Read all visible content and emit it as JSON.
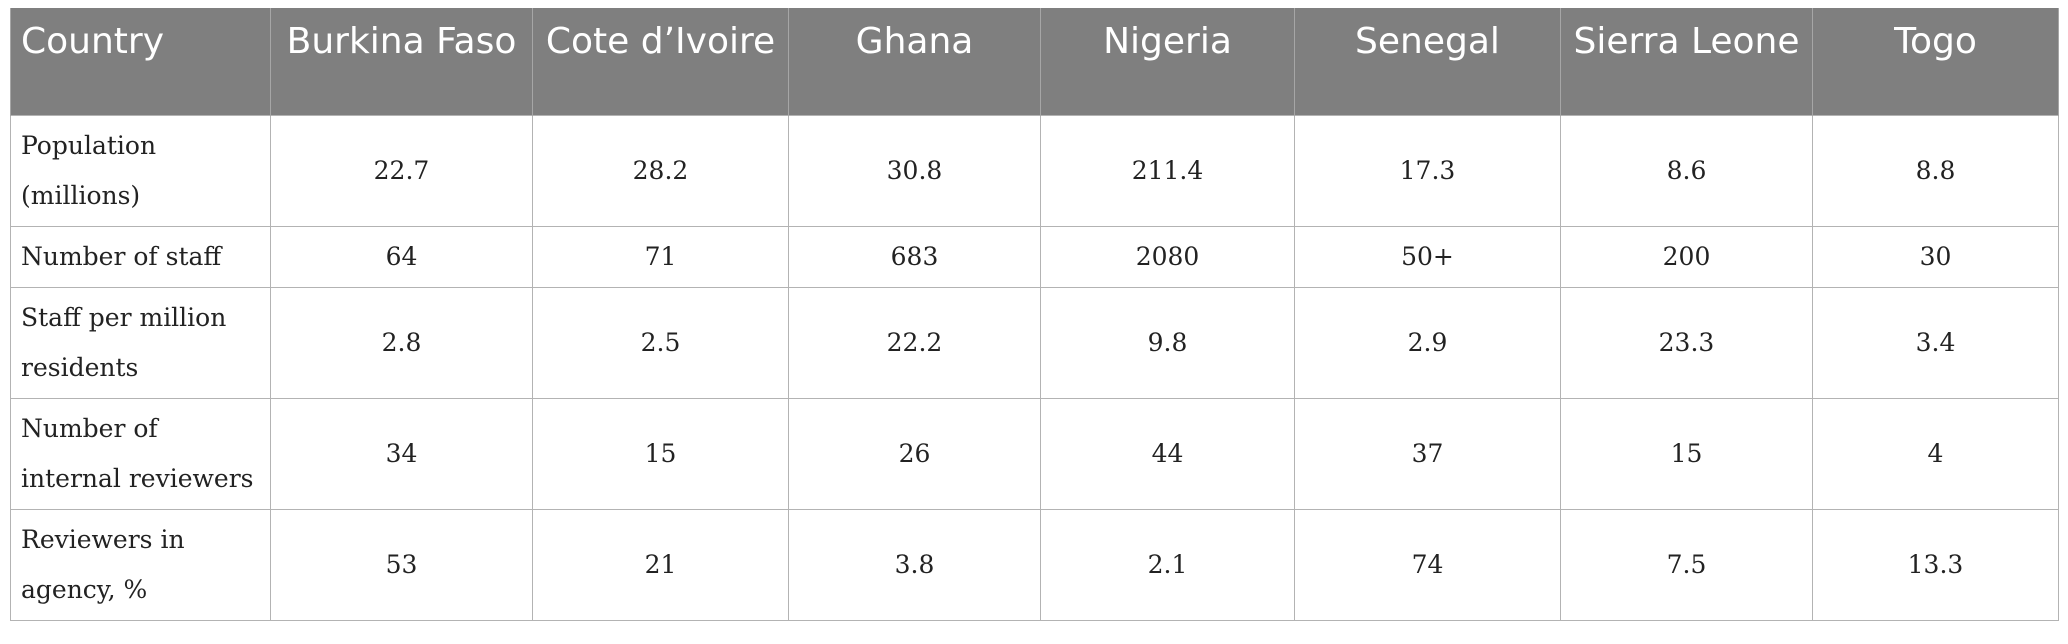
{
  "table": {
    "headers": [
      "Country",
      "Burkina Faso",
      "Cote d’Ivoire",
      "Ghana",
      "Nigeria",
      "Senegal",
      "Sierra Leone",
      "Togo"
    ],
    "rows": [
      {
        "label": "Population (millions)",
        "values": [
          "22.7",
          "28.2",
          "30.8",
          "211.4",
          "17.3",
          "8.6",
          "8.8"
        ]
      },
      {
        "label": "Number of staff",
        "values": [
          "64",
          "71",
          "683",
          "2080",
          "50+",
          "200",
          "30"
        ]
      },
      {
        "label": "Staff per million residents",
        "values": [
          "2.8",
          "2.5",
          "22.2",
          "9.8",
          "2.9",
          "23.3",
          "3.4"
        ]
      },
      {
        "label": "Number of internal reviewers",
        "values": [
          "34",
          "15",
          "26",
          "44",
          "37",
          "15",
          "4"
        ]
      },
      {
        "label": "Reviewers in agency, %",
        "values": [
          "53",
          "21",
          "3.8",
          "2.1",
          "74",
          "7.5",
          "13.3"
        ]
      }
    ]
  }
}
